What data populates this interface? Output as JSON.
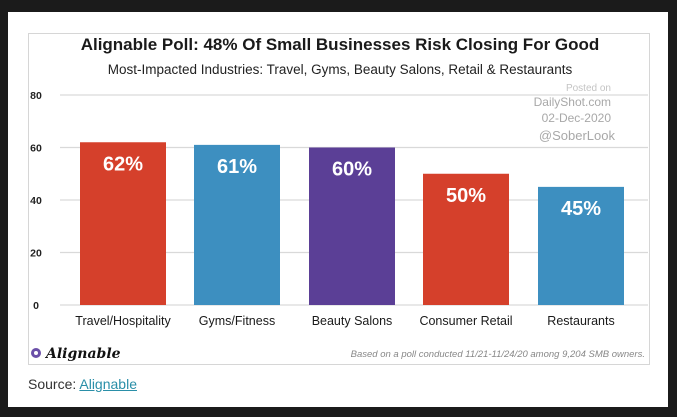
{
  "chart_data": {
    "type": "bar",
    "title": "Alignable Poll: 48% Of Small Businesses Risk Closing For Good",
    "subtitle": "Most-Impacted Industries: Travel, Gyms, Beauty Salons, Retail & Restaurants",
    "categories": [
      "Travel/Hospitality",
      "Gyms/Fitness",
      "Beauty Salons",
      "Consumer Retail",
      "Restaurants"
    ],
    "values": [
      62,
      61,
      60,
      50,
      45
    ],
    "data_labels": [
      "62%",
      "61%",
      "60%",
      "50%",
      "45%"
    ],
    "colors": [
      "#d5402b",
      "#3d8fc0",
      "#5b3f96",
      "#d5402b",
      "#3d8fc0"
    ],
    "ylim": [
      0,
      80
    ],
    "yticks": [
      0,
      20,
      40,
      60,
      80
    ],
    "grid": true,
    "xlabel": "",
    "ylabel": "",
    "watermark": [
      "Posted on",
      "DailyShot.com",
      "02-Dec-2020",
      "@SoberLook"
    ],
    "footnote": "Based on a poll conducted 11/21-11/24/20 among 9,204 SMB owners.",
    "logo_text": "Alignable"
  },
  "source": {
    "label": "Source:",
    "link": "Alignable"
  }
}
